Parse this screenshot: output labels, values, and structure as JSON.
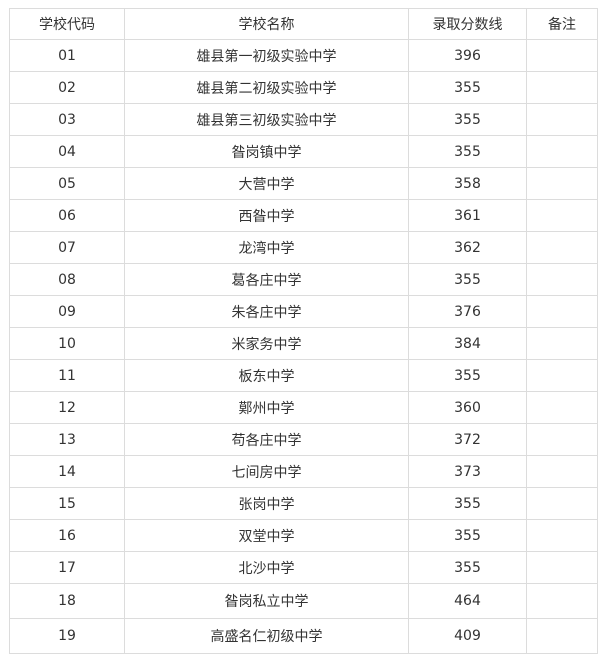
{
  "headers": [
    "学校代码",
    "学校名称",
    "录取分数线",
    "备注"
  ],
  "rows": [
    {
      "code": "01",
      "name": "雄县第一初级实验中学",
      "score": "396",
      "note": ""
    },
    {
      "code": "02",
      "name": "雄县第二初级实验中学",
      "score": "355",
      "note": ""
    },
    {
      "code": "03",
      "name": "雄县第三初级实验中学",
      "score": "355",
      "note": ""
    },
    {
      "code": "04",
      "name": "昝岗镇中学",
      "score": "355",
      "note": ""
    },
    {
      "code": "05",
      "name": "大营中学",
      "score": "358",
      "note": ""
    },
    {
      "code": "06",
      "name": "西昝中学",
      "score": "361",
      "note": ""
    },
    {
      "code": "07",
      "name": "龙湾中学",
      "score": "362",
      "note": ""
    },
    {
      "code": "08",
      "name": "葛各庄中学",
      "score": "355",
      "note": ""
    },
    {
      "code": "09",
      "name": "朱各庄中学",
      "score": "376",
      "note": ""
    },
    {
      "code": "10",
      "name": "米家务中学",
      "score": "384",
      "note": ""
    },
    {
      "code": "11",
      "name": "板东中学",
      "score": "355",
      "note": ""
    },
    {
      "code": "12",
      "name": "鄚州中学",
      "score": "360",
      "note": ""
    },
    {
      "code": "13",
      "name": "苟各庄中学",
      "score": "372",
      "note": ""
    },
    {
      "code": "14",
      "name": "七间房中学",
      "score": "373",
      "note": ""
    },
    {
      "code": "15",
      "name": "张岗中学",
      "score": "355",
      "note": ""
    },
    {
      "code": "16",
      "name": "双堂中学",
      "score": "355",
      "note": ""
    },
    {
      "code": "17",
      "name": "北沙中学",
      "score": "355",
      "note": ""
    },
    {
      "code": "18",
      "name": "昝岗私立中学",
      "score": "464",
      "note": ""
    },
    {
      "code": "19",
      "name": "高盛名仁初级中学",
      "score": "409",
      "note": ""
    }
  ]
}
